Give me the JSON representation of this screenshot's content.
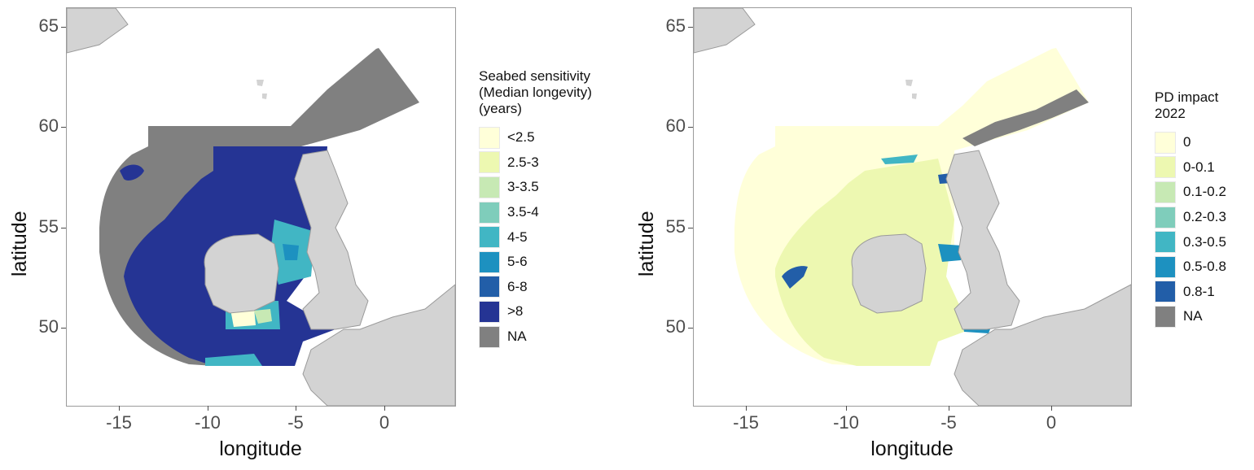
{
  "axes": {
    "xlabel": "longitude",
    "ylabel": "latitude",
    "xticks": [
      "-15",
      "-10",
      "-5",
      "0"
    ],
    "yticks": [
      "65",
      "60",
      "55",
      "50"
    ],
    "xlim": [
      -18,
      4
    ],
    "ylim": [
      46,
      66
    ]
  },
  "maps": [
    {
      "legend_title": [
        "Seabed sensitivity",
        "(Median longevity)",
        "(years)"
      ],
      "legend": [
        {
          "label": "<2.5",
          "color": "#ffffd9"
        },
        {
          "label": "2.5-3",
          "color": "#edf8b1"
        },
        {
          "label": "3-3.5",
          "color": "#c7e9b4"
        },
        {
          "label": "3.5-4",
          "color": "#7fcdbb"
        },
        {
          "label": "4-5",
          "color": "#41b6c4"
        },
        {
          "label": "5-6",
          "color": "#1d91c0"
        },
        {
          "label": "6-8",
          "color": "#225ea8"
        },
        {
          "label": ">8",
          "color": "#253494"
        },
        {
          "label": "NA",
          "color": "#808080"
        }
      ]
    },
    {
      "legend_title": [
        "PD impact",
        "2022"
      ],
      "legend": [
        {
          "label": "0",
          "color": "#ffffd9"
        },
        {
          "label": "0-0.1",
          "color": "#edf8b1"
        },
        {
          "label": "0.1-0.2",
          "color": "#c7e9b4"
        },
        {
          "label": "0.2-0.3",
          "color": "#7fcdbb"
        },
        {
          "label": "0.3-0.5",
          "color": "#41b6c4"
        },
        {
          "label": "0.5-0.8",
          "color": "#1d91c0"
        },
        {
          "label": "0.8-1",
          "color": "#225ea8"
        },
        {
          "label": "NA",
          "color": "#808080"
        }
      ]
    }
  ],
  "colors": {
    "land": "#d3d3d3",
    "land_border": "#9a9a9a"
  }
}
